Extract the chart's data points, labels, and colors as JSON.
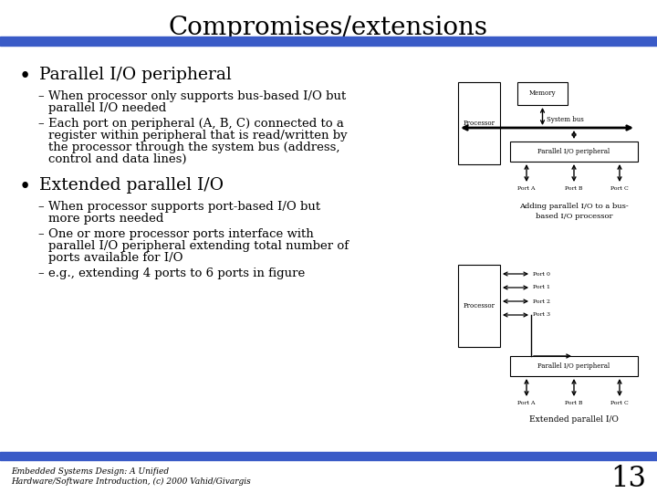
{
  "title": "Compromises/extensions",
  "title_fontsize": 20,
  "title_font": "serif",
  "bg_color": "#ffffff",
  "blue_bar_color": "#3a5bc7",
  "bullet1": "Parallel I/O peripheral",
  "bullet1_sub1": "When processor only supports bus-based I/O but parallel I/O needed",
  "bullet1_sub2": "Each port on peripheral (A, B, C) connected to a register within peripheral that is read/written by the processor through the system bus (address, control and data lines)",
  "bullet2": "Extended parallel I/O",
  "bullet2_sub1": "When processor supports port-based I/O but more ports needed",
  "bullet2_sub2": "One or more processor ports interface with parallel I/O peripheral extending total number of ports available for I/O",
  "bullet2_sub3": "e.g., extending 4 ports to 6 ports in figure",
  "footer_line1": "Embedded Systems Design: A Unified",
  "footer_line2": "Hardware/Software Introduction, (c) 2000 Vahid/Givargis",
  "page_number": "13",
  "diagram1_caption_line1": "Adding parallel I/O to a bus-",
  "diagram1_caption_line2": "based I/O processor",
  "diagram2_caption": "Extended parallel I/O"
}
